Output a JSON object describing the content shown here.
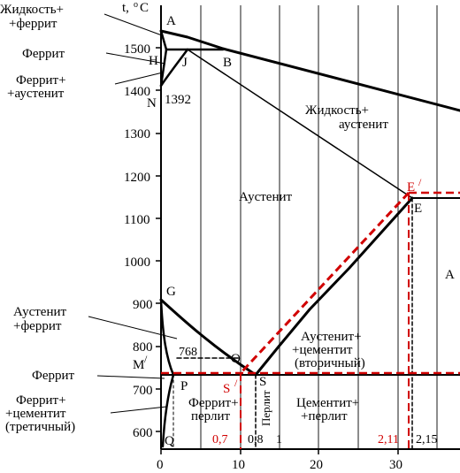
{
  "axis": {
    "y_label": "t,",
    "y_label_sup": "o",
    "y_label_unit": "C",
    "y_ticks": [
      "1500",
      "1400",
      "1300",
      "1200",
      "1100",
      "1000",
      "900",
      "800",
      "700",
      "600"
    ],
    "x_ticks": [
      "0",
      "10",
      "20",
      "30"
    ],
    "x_special": {
      "s_08": "0,8",
      "one": "1",
      "two_15": "2,15",
      "red_07": "0,7",
      "red_211": "2,11"
    }
  },
  "points": {
    "A": "A",
    "H": "H",
    "J": "J",
    "B": "B",
    "N": "N",
    "n_val": "1392",
    "E": "E",
    "E_prime": "E",
    "E_prime_mark": "/",
    "G": "G",
    "O": "O",
    "P": "P",
    "S": "S",
    "S_prime": "S",
    "S_prime_mark": "/",
    "Q": "Q",
    "M": "M",
    "M_mark": "/",
    "A_right": "A",
    "t768": "768"
  },
  "labels": {
    "zhidkost_ferrit_1": "Жидкость+",
    "zhidkost_ferrit_2": "+феррит",
    "ferrit_top": "Феррит",
    "ferrit_austenit_1": "Феррит+",
    "ferrit_austenit_2": "+аустенит",
    "zhidkost_austenit_1": "Жидкость+",
    "zhidkost_austenit_2": "аустенит",
    "austenit": "Аустенит",
    "austenit_ferrit_1": "Аустенит",
    "austenit_ferrit_2": "+феррит",
    "austenit_cementit_1": "Аустенит+",
    "austenit_cementit_2": "+цементит",
    "austenit_cementit_3": "(вторичный)",
    "ferrit_mid": "Феррит",
    "ferrit_cementit_1": "Феррит+",
    "ferrit_cementit_2": "+цементит",
    "ferrit_cementit_3": "(третичный)",
    "ferrit_perlit_1": "Феррит+",
    "ferrit_perlit_2": "перлит",
    "perlit_vertical": "Перлит",
    "cementit_perlit_1": "Цементит+",
    "cementit_perlit_2": "+перлит"
  },
  "colors": {
    "line": "#000000",
    "red_dashed": "#d10000",
    "background": "#ffffff"
  }
}
